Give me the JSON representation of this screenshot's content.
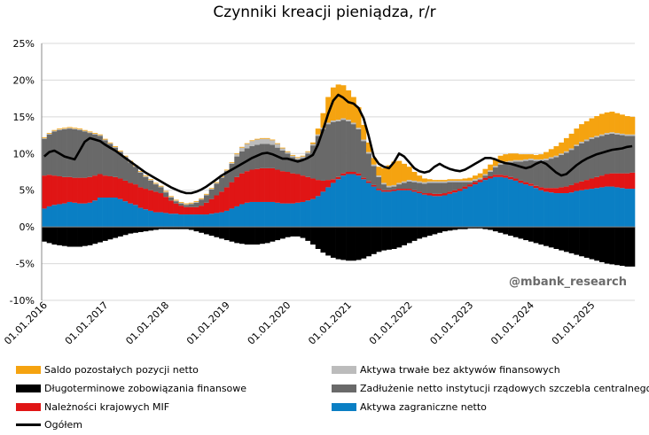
{
  "chart_data": {
    "type": "bar",
    "stacked": true,
    "title": "Czynniki kreacji pieniądza, r/r",
    "ylim": [
      -10,
      25
    ],
    "y_ticks": [
      "25%",
      "20%",
      "15%",
      "10%",
      "5%",
      "0%",
      "-5%",
      "-10%"
    ],
    "y_tick_values": [
      25,
      20,
      15,
      10,
      5,
      0,
      -5,
      -10
    ],
    "x_ticks": [
      "01.01.2016",
      "01.01.2017",
      "01.01.2018",
      "01.01.2019",
      "01.01.2020",
      "01.01.2021",
      "01.01.2022",
      "01.01.2023",
      "01.01.2024",
      "01.01.2025"
    ],
    "x_tick_year_index": [
      0,
      1,
      2,
      3,
      4,
      5,
      6,
      7,
      8,
      9
    ],
    "grid": true,
    "x_start_year": 2016,
    "n_months": 117,
    "series": [
      {
        "name": "Aktywa zagraniczne netto",
        "color": "#0a7fc4",
        "values": [
          2.5,
          2.8,
          3.0,
          3.1,
          3.2,
          3.4,
          3.3,
          3.2,
          3.2,
          3.3,
          3.6,
          4.0,
          4.0,
          4.0,
          4.0,
          3.8,
          3.5,
          3.2,
          3.0,
          2.6,
          2.4,
          2.2,
          2.0,
          2.0,
          1.9,
          1.8,
          1.8,
          1.7,
          1.7,
          1.7,
          1.7,
          1.7,
          1.7,
          1.8,
          1.9,
          2.0,
          2.2,
          2.5,
          2.8,
          3.1,
          3.3,
          3.4,
          3.4,
          3.4,
          3.4,
          3.4,
          3.3,
          3.2,
          3.2,
          3.2,
          3.3,
          3.4,
          3.6,
          3.8,
          4.2,
          4.8,
          5.4,
          6.0,
          6.5,
          7.0,
          7.2,
          7.2,
          7.0,
          6.5,
          6.0,
          5.5,
          5.0,
          4.8,
          4.8,
          4.9,
          5.0,
          5.0,
          5.0,
          4.8,
          4.6,
          4.4,
          4.3,
          4.2,
          4.2,
          4.3,
          4.5,
          4.7,
          4.9,
          5.2,
          5.5,
          5.8,
          6.1,
          6.4,
          6.6,
          6.8,
          6.8,
          6.7,
          6.5,
          6.3,
          6.0,
          5.8,
          5.6,
          5.3,
          5.0,
          4.8,
          4.7,
          4.6,
          4.6,
          4.6,
          4.7,
          4.9,
          5.0,
          5.1,
          5.2,
          5.3,
          5.4,
          5.5,
          5.5,
          5.4,
          5.3,
          5.2,
          5.2
        ]
      },
      {
        "name": "Należności krajowych MIF",
        "color": "#e01515",
        "values": [
          4.5,
          4.3,
          4.0,
          3.8,
          3.6,
          3.4,
          3.4,
          3.5,
          3.5,
          3.5,
          3.4,
          3.2,
          3.0,
          2.9,
          2.8,
          2.8,
          2.8,
          2.8,
          2.8,
          2.8,
          2.8,
          2.8,
          2.8,
          2.6,
          2.2,
          1.8,
          1.4,
          1.2,
          1.0,
          1.0,
          1.0,
          1.2,
          1.6,
          2.0,
          2.4,
          2.8,
          3.2,
          3.6,
          4.0,
          4.2,
          4.3,
          4.4,
          4.5,
          4.6,
          4.6,
          4.6,
          4.5,
          4.4,
          4.3,
          4.1,
          3.9,
          3.6,
          3.2,
          2.8,
          2.2,
          1.5,
          1.0,
          0.5,
          0.3,
          0.3,
          0.3,
          0.3,
          0.3,
          0.2,
          0.2,
          0.2,
          0.2,
          0.2,
          0.2,
          0.2,
          0.2,
          0.2,
          0.2,
          0.2,
          0.2,
          0.2,
          0.3,
          0.3,
          0.3,
          0.3,
          0.3,
          0.3,
          0.3,
          0.3,
          0.3,
          0.3,
          0.3,
          0.3,
          0.3,
          0.3,
          0.3,
          0.3,
          0.3,
          0.3,
          0.3,
          0.3,
          0.3,
          0.3,
          0.4,
          0.5,
          0.6,
          0.7,
          0.8,
          0.9,
          1.0,
          1.1,
          1.2,
          1.3,
          1.4,
          1.5,
          1.6,
          1.7,
          1.8,
          1.9,
          2.0,
          2.1,
          2.2
        ]
      },
      {
        "name": "Zadłużenie netto instytucji rządowych szczebla centralnego",
        "color": "#696969",
        "values": [
          5.0,
          5.5,
          6.0,
          6.3,
          6.5,
          6.6,
          6.6,
          6.5,
          6.3,
          6.0,
          5.6,
          5.2,
          4.8,
          4.4,
          4.0,
          3.6,
          3.2,
          2.8,
          2.4,
          2.0,
          1.6,
          1.3,
          1.0,
          0.8,
          0.6,
          0.4,
          0.3,
          0.3,
          0.3,
          0.4,
          0.6,
          0.8,
          1.0,
          1.3,
          1.6,
          1.9,
          2.2,
          2.5,
          2.8,
          3.0,
          3.1,
          3.2,
          3.3,
          3.3,
          3.3,
          3.2,
          3.0,
          2.8,
          2.5,
          2.2,
          2.0,
          2.4,
          3.2,
          4.5,
          6.0,
          7.0,
          7.6,
          7.8,
          7.6,
          7.3,
          6.9,
          6.5,
          6.0,
          5.0,
          3.8,
          2.6,
          1.6,
          0.8,
          0.4,
          0.4,
          0.6,
          0.8,
          1.0,
          1.1,
          1.2,
          1.3,
          1.4,
          1.5,
          1.5,
          1.4,
          1.3,
          1.1,
          0.9,
          0.6,
          0.3,
          0.2,
          0.1,
          0.3,
          0.6,
          1.0,
          1.4,
          1.7,
          2.0,
          2.3,
          2.6,
          2.9,
          3.2,
          3.4,
          3.6,
          3.8,
          4.0,
          4.2,
          4.4,
          4.6,
          4.8,
          5.0,
          5.2,
          5.3,
          5.4,
          5.4,
          5.4,
          5.4,
          5.4,
          5.3,
          5.2,
          5.1,
          5.0
        ]
      },
      {
        "name": "Aktywa trwałe bez aktywów finansowych",
        "color": "#bcbcbc",
        "values": [
          0.1,
          0.1,
          0.1,
          0.1,
          0.1,
          0.1,
          0.1,
          0.1,
          0.1,
          0.1,
          0.1,
          0.1,
          0.1,
          0.1,
          0.1,
          0.1,
          0.1,
          0.1,
          0.1,
          0.1,
          0.1,
          0.1,
          0.1,
          0.1,
          0.1,
          0.1,
          0.1,
          0.1,
          0.1,
          0.1,
          0.1,
          0.1,
          0.1,
          0.1,
          0.1,
          0.1,
          0.1,
          0.1,
          0.3,
          0.5,
          0.6,
          0.7,
          0.7,
          0.7,
          0.7,
          0.6,
          0.5,
          0.3,
          0.2,
          0.2,
          0.2,
          0.2,
          0.2,
          0.2,
          0.2,
          0.2,
          0.2,
          0.2,
          0.2,
          0.2,
          0.2,
          0.2,
          0.2,
          0.2,
          0.2,
          0.2,
          0.2,
          0.2,
          0.2,
          0.2,
          0.2,
          0.2,
          0.2,
          0.2,
          0.2,
          0.2,
          0.2,
          0.2,
          0.2,
          0.2,
          0.2,
          0.2,
          0.2,
          0.2,
          0.2,
          0.2,
          0.2,
          0.2,
          0.2,
          0.2,
          0.2,
          0.2,
          0.2,
          0.2,
          0.2,
          0.2,
          0.2,
          0.2,
          0.2,
          0.2,
          0.2,
          0.2,
          0.2,
          0.2,
          0.2,
          0.2,
          0.2,
          0.2,
          0.2,
          0.2,
          0.2,
          0.2,
          0.2,
          0.2,
          0.2,
          0.2,
          0.2
        ]
      },
      {
        "name": "Saldo pozostałych pozycji netto",
        "color": "#f5a310",
        "values": [
          0.1,
          0.1,
          0.1,
          0.1,
          0.1,
          0.1,
          0.1,
          0.1,
          0.1,
          0.1,
          0.1,
          0.1,
          0.1,
          0.1,
          0.1,
          0.1,
          0.1,
          0.1,
          0.1,
          0.1,
          0.1,
          0.1,
          0.1,
          0.1,
          0.1,
          0.1,
          0.1,
          0.1,
          0.1,
          0.1,
          0.1,
          0.1,
          0.1,
          0.1,
          0.1,
          0.1,
          0.1,
          0.1,
          0.1,
          0.1,
          0.1,
          0.1,
          0.1,
          0.1,
          0.1,
          0.1,
          0.1,
          0.1,
          0.1,
          0.1,
          0.1,
          0.1,
          0.1,
          0.2,
          0.8,
          2.0,
          3.5,
          4.5,
          4.8,
          4.5,
          4.0,
          3.5,
          2.8,
          2.0,
          1.3,
          0.9,
          1.2,
          2.0,
          2.8,
          3.2,
          3.0,
          2.4,
          1.8,
          1.2,
          0.8,
          0.5,
          0.3,
          0.2,
          0.2,
          0.2,
          0.2,
          0.2,
          0.2,
          0.3,
          0.4,
          0.5,
          0.6,
          0.7,
          0.8,
          0.9,
          1.0,
          1.0,
          1.0,
          0.9,
          0.8,
          0.7,
          0.6,
          0.6,
          0.7,
          0.9,
          1.1,
          1.3,
          1.5,
          1.8,
          2.0,
          2.2,
          2.4,
          2.5,
          2.6,
          2.7,
          2.8,
          2.8,
          2.8,
          2.7,
          2.6,
          2.5,
          2.4
        ]
      },
      {
        "name": "Długoterminowe zobowiązania finansowe",
        "color": "#000000",
        "values": [
          -2.0,
          -2.2,
          -2.4,
          -2.5,
          -2.6,
          -2.7,
          -2.7,
          -2.7,
          -2.6,
          -2.5,
          -2.3,
          -2.1,
          -1.9,
          -1.7,
          -1.5,
          -1.3,
          -1.1,
          -0.9,
          -0.8,
          -0.7,
          -0.6,
          -0.5,
          -0.4,
          -0.3,
          -0.3,
          -0.3,
          -0.3,
          -0.3,
          -0.3,
          -0.4,
          -0.6,
          -0.8,
          -1.0,
          -1.2,
          -1.4,
          -1.6,
          -1.8,
          -2.0,
          -2.2,
          -2.3,
          -2.4,
          -2.4,
          -2.4,
          -2.3,
          -2.2,
          -2.0,
          -1.8,
          -1.6,
          -1.4,
          -1.3,
          -1.3,
          -1.5,
          -1.9,
          -2.4,
          -3.0,
          -3.5,
          -3.9,
          -4.2,
          -4.4,
          -4.5,
          -4.6,
          -4.6,
          -4.5,
          -4.3,
          -4.0,
          -3.7,
          -3.4,
          -3.2,
          -3.1,
          -3.0,
          -2.8,
          -2.5,
          -2.2,
          -1.9,
          -1.6,
          -1.4,
          -1.2,
          -1.0,
          -0.8,
          -0.6,
          -0.5,
          -0.4,
          -0.3,
          -0.3,
          -0.2,
          -0.2,
          -0.2,
          -0.3,
          -0.4,
          -0.6,
          -0.8,
          -1.0,
          -1.2,
          -1.4,
          -1.6,
          -1.8,
          -2.0,
          -2.2,
          -2.4,
          -2.6,
          -2.8,
          -3.0,
          -3.2,
          -3.4,
          -3.6,
          -3.8,
          -4.0,
          -4.2,
          -4.4,
          -4.6,
          -4.8,
          -5.0,
          -5.1,
          -5.2,
          -5.3,
          -5.4,
          -5.4
        ]
      },
      {
        "name": "Ogółem",
        "type": "line",
        "color": "#000000",
        "values": [
          9.6,
          10.2,
          10.4,
          10.0,
          9.6,
          9.4,
          9.2,
          10.4,
          11.6,
          12.1,
          11.9,
          11.7,
          11.2,
          10.8,
          10.4,
          9.9,
          9.4,
          8.9,
          8.4,
          7.9,
          7.4,
          7.0,
          6.6,
          6.2,
          5.8,
          5.4,
          5.1,
          4.8,
          4.6,
          4.6,
          4.8,
          5.1,
          5.5,
          6.0,
          6.5,
          7.0,
          7.4,
          7.8,
          8.2,
          8.6,
          9.0,
          9.4,
          9.7,
          10.0,
          10.1,
          9.9,
          9.6,
          9.3,
          9.3,
          9.1,
          8.9,
          9.1,
          9.4,
          9.8,
          11.2,
          13.2,
          15.4,
          17.2,
          18.0,
          17.6,
          17.0,
          16.8,
          16.2,
          14.8,
          12.4,
          9.6,
          8.6,
          8.2,
          8.0,
          8.8,
          10.0,
          9.6,
          8.8,
          8.0,
          7.6,
          7.4,
          7.6,
          8.2,
          8.6,
          8.2,
          7.9,
          7.7,
          7.6,
          7.8,
          8.2,
          8.6,
          9.0,
          9.4,
          9.4,
          9.2,
          8.9,
          8.7,
          8.6,
          8.4,
          8.2,
          8.0,
          8.2,
          8.6,
          8.9,
          8.6,
          8.0,
          7.4,
          7.0,
          7.2,
          7.8,
          8.4,
          8.9,
          9.3,
          9.6,
          9.9,
          10.1,
          10.3,
          10.5,
          10.6,
          10.7,
          10.9,
          11.0
        ]
      }
    ]
  },
  "watermark": "@mbank_research",
  "legend": {
    "saldo": "Saldo pozostałych pozycji netto",
    "aktywa_trwale": "Aktywa trwałe bez aktywów finansowych",
    "dlugoterminowe": "Długoterminowe zobowiązania finansowe",
    "zadluzenie": "Zadłużenie netto instytucji rządowych szczebla centralnego",
    "naleznosci": "Należności krajowych MIF",
    "aktywa_zagraniczne": "Aktywa zagraniczne netto",
    "ogolem": "Ogółem"
  },
  "colors": {
    "saldo": "#f5a310",
    "aktywa_trwale": "#bcbcbc",
    "dlugoterminowe": "#000000",
    "zadluzenie": "#696969",
    "naleznosci": "#e01515",
    "aktywa_zagraniczne": "#0a7fc4",
    "ogolem": "#000000"
  }
}
